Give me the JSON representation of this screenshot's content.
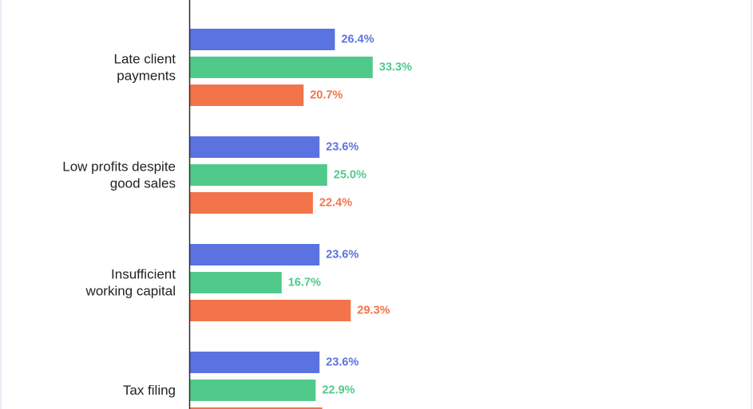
{
  "chart_data": {
    "type": "bar",
    "orientation": "horizontal",
    "categories": [
      [
        "Late client",
        "payments"
      ],
      [
        "Low profits despite",
        "good sales"
      ],
      [
        "Insufficient",
        "working capital"
      ],
      [
        "Tax filing"
      ]
    ],
    "series": [
      {
        "color": "#5b73e1",
        "values": [
          26.4,
          23.6,
          23.6,
          23.6
        ],
        "labels": [
          "26.4%",
          "23.6%",
          "23.6%",
          "23.6%"
        ]
      },
      {
        "color": "#4fca8a",
        "values": [
          33.3,
          25.0,
          16.7,
          22.9
        ],
        "labels": [
          "33.3%",
          "25.0%",
          "16.7%",
          "22.9%"
        ]
      },
      {
        "color": "#f3734a",
        "values": [
          20.7,
          22.4,
          29.3,
          24.1
        ],
        "labels": [
          "20.7%",
          "22.4%",
          "29.3%",
          ""
        ]
      }
    ],
    "title": "",
    "xlabel": "",
    "ylabel": "",
    "legend": "none",
    "grid": false
  }
}
